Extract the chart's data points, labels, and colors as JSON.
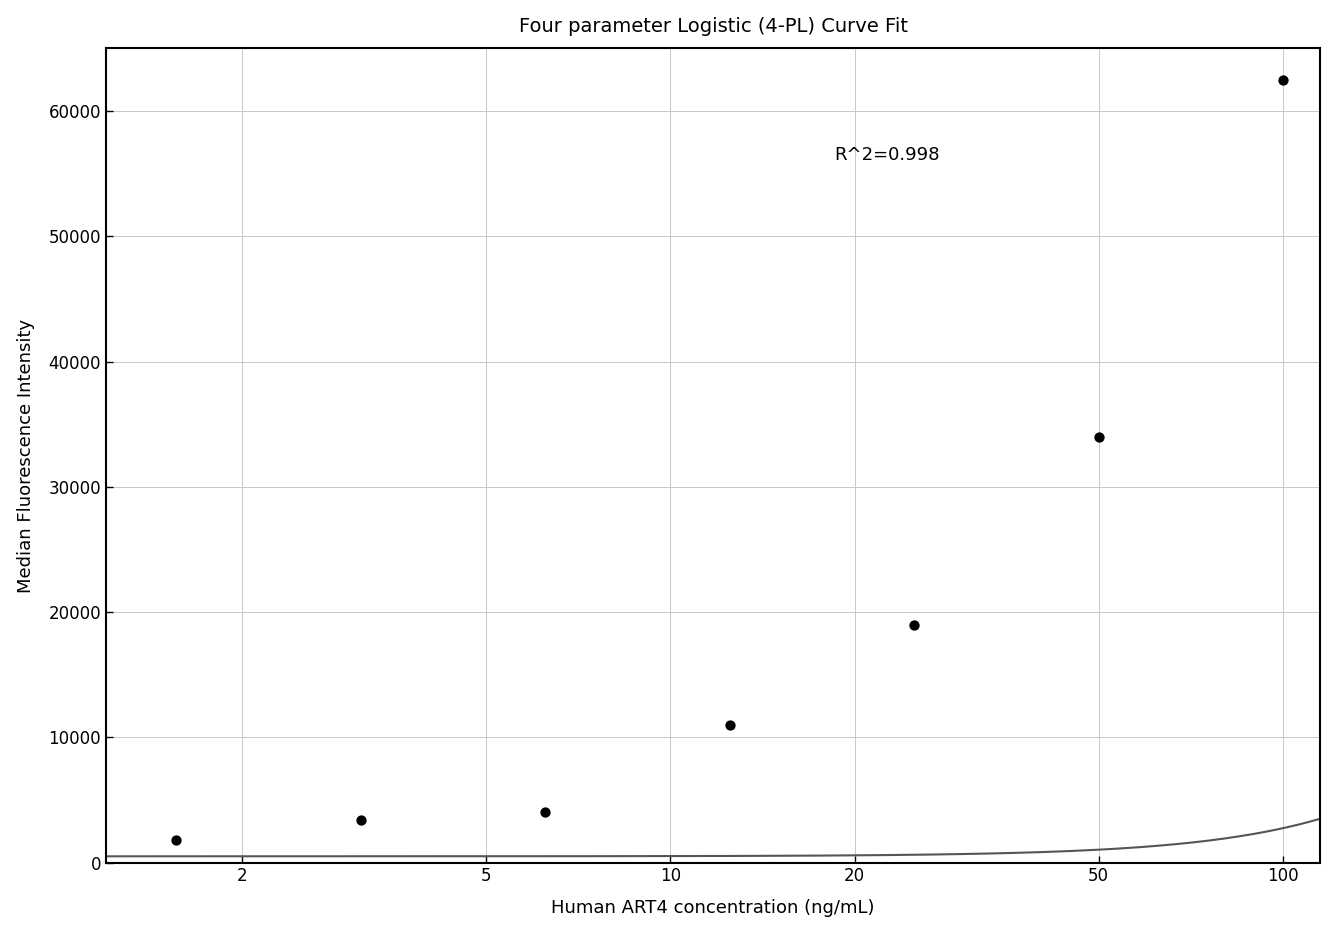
{
  "title": "Four parameter Logistic (4-PL) Curve Fit",
  "xlabel": "Human ART4 concentration (ng/mL)",
  "ylabel": "Median Fluorescence Intensity",
  "r_squared_text": "R^2=0.998",
  "data_x": [
    1.5625,
    3.125,
    6.25,
    12.5,
    25,
    50,
    100
  ],
  "data_y": [
    1800,
    3400,
    4000,
    11000,
    19000,
    34000,
    62500
  ],
  "xlim_log": [
    1.2,
    115
  ],
  "ylim": [
    0,
    65000
  ],
  "xticks": [
    2,
    5,
    10,
    20,
    50,
    100
  ],
  "yticks": [
    0,
    10000,
    20000,
    30000,
    40000,
    50000,
    60000
  ],
  "grid_color": "#c8c8c8",
  "curve_color": "#555555",
  "dot_color": "#000000",
  "dot_size": 55,
  "background_color": "#ffffff",
  "title_fontsize": 14,
  "label_fontsize": 13,
  "tick_fontsize": 12,
  "annotation_fontsize": 13
}
